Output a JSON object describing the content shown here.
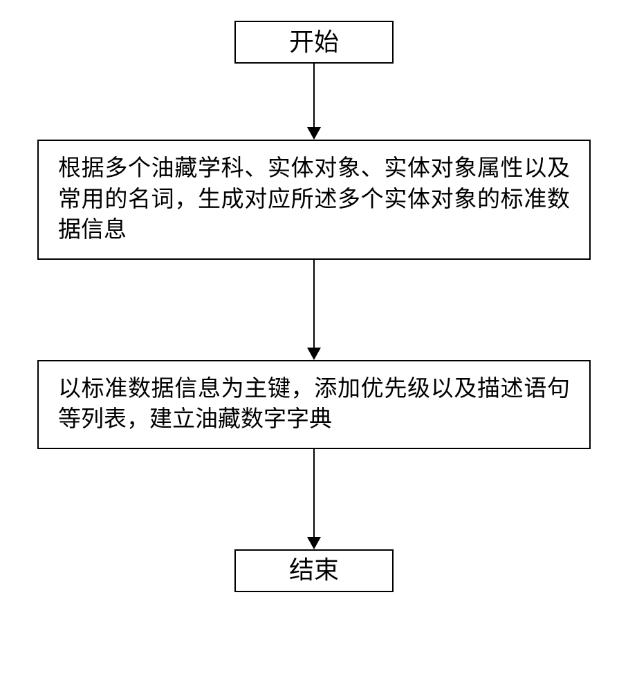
{
  "flowchart": {
    "type": "flowchart",
    "background_color": "#ffffff",
    "border_color": "#000000",
    "border_width": 2,
    "text_color": "#000000",
    "font_family": "SimSun",
    "terminal_font_size": 36,
    "process_font_size": 33,
    "terminal_width": 230,
    "terminal_height": 62,
    "process_width": 800,
    "arrow_head_size": 18,
    "arrow_line_width": 2,
    "nodes": {
      "start": {
        "shape": "terminal",
        "label": "开始"
      },
      "step1": {
        "shape": "process",
        "label": "根据多个油藏学科、实体对象、实体对象属性以及常用的名词，生成对应所述多个实体对象的标准数据信息"
      },
      "step2": {
        "shape": "process",
        "label": "以标准数据信息为主键，添加优先级以及描述语句等列表，建立油藏数字字典"
      },
      "end": {
        "shape": "terminal",
        "label": "结束"
      }
    },
    "edges": [
      {
        "from": "start",
        "to": "step1",
        "length": 110
      },
      {
        "from": "step1",
        "to": "step2",
        "length": 145
      },
      {
        "from": "step2",
        "to": "end",
        "length": 145
      }
    ]
  }
}
